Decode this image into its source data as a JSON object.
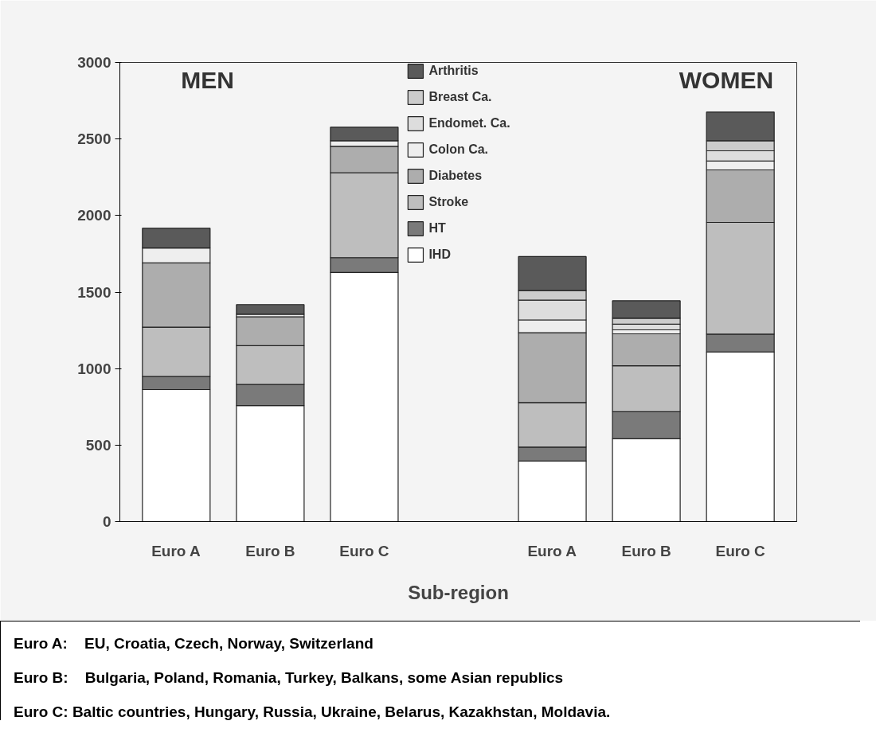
{
  "chart_data": {
    "type": "bar",
    "stacked": true,
    "xlabel": "Sub-region",
    "categories": [
      "Euro A",
      "Euro B",
      "Euro C",
      null,
      "Euro A",
      "Euro B",
      "Euro C"
    ],
    "series": [
      {
        "name": "IHD",
        "color": "#ffffff",
        "values": [
          863,
          758,
          1628,
          null,
          396,
          541,
          1108
        ]
      },
      {
        "name": "HT",
        "color": "#7a7a7a",
        "values": [
          85,
          138,
          97,
          null,
          91,
          177,
          117
        ]
      },
      {
        "name": "Stroke",
        "color": "#bebebe",
        "values": [
          323,
          254,
          555,
          null,
          291,
          300,
          730
        ]
      },
      {
        "name": "Diabetes",
        "color": "#adadad",
        "values": [
          419,
          188,
          172,
          null,
          456,
          209,
          343
        ]
      },
      {
        "name": "Colon Ca.",
        "color": "#eeeeee",
        "values": [
          98,
          17,
          37,
          null,
          84,
          26,
          58
        ]
      },
      {
        "name": "Endomet. Ca.",
        "color": "#dddddd",
        "values": [
          null,
          null,
          null,
          null,
          129,
          37,
          67
        ]
      },
      {
        "name": "Breast Ca.",
        "color": "#cccccc",
        "values": [
          null,
          null,
          null,
          null,
          63,
          39,
          65
        ]
      },
      {
        "name": "Arthritis",
        "color": "#5a5a5a",
        "values": [
          129,
          63,
          88,
          null,
          222,
          114,
          188
        ]
      }
    ],
    "ylim": [
      0,
      3000
    ],
    "yticks": [
      0,
      500,
      1000,
      1500,
      2000,
      2500,
      3000
    ],
    "legend": "top",
    "annotations": [
      "MEN",
      "WOMEN",
      "Euro A:    EU, Croatia, Czech, Norway, Switzerland",
      "Euro B:    Bulgaria, Poland, Romania, Turkey, Balkans, some Asian republics",
      "Euro C: Baltic countries, Hungary, Russia, Ukraine, Belarus, Kazakhstan, Moldavia."
    ]
  }
}
